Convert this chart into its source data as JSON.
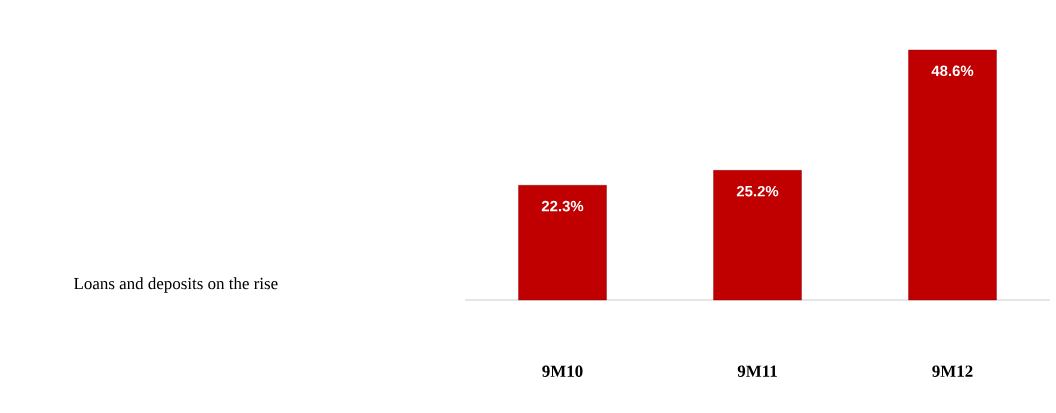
{
  "chart_data": {
    "type": "bar",
    "categories": [
      "9M10",
      "9M11",
      "9M12"
    ],
    "values": [
      22.3,
      25.2,
      48.6
    ],
    "color": "#c00000",
    "value_labels": [
      "22.3%",
      "25.2%",
      "48.6%"
    ],
    "annotations": [
      "Loans and deposits on the rise"
    ]
  }
}
